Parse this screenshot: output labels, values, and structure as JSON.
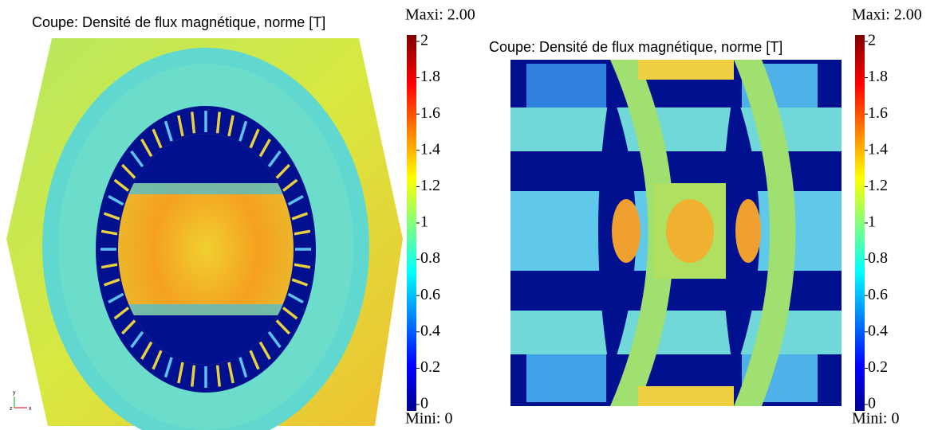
{
  "panels": [
    {
      "title": "Coupe: Densité de flux magnétique, norme [T]",
      "max_label": "Maxi: 2.00",
      "min_label": "Mini: 0",
      "colorbar": {
        "range": [
          0,
          2
        ],
        "ticks": [
          0,
          0.2,
          0.4,
          0.6,
          0.8,
          1,
          1.2,
          1.4,
          1.6,
          1.8,
          2
        ]
      },
      "triad": [
        "y",
        "z",
        "x"
      ]
    },
    {
      "title": "Coupe: Densité de flux magnétique, norme [T]",
      "max_label": "Maxi: 2.00",
      "min_label": "Mini: 0",
      "colorbar": {
        "range": [
          0,
          2
        ],
        "ticks": [
          0,
          0.2,
          0.4,
          0.6,
          0.8,
          1,
          1.2,
          1.4,
          1.6,
          1.8,
          2
        ]
      }
    }
  ]
}
